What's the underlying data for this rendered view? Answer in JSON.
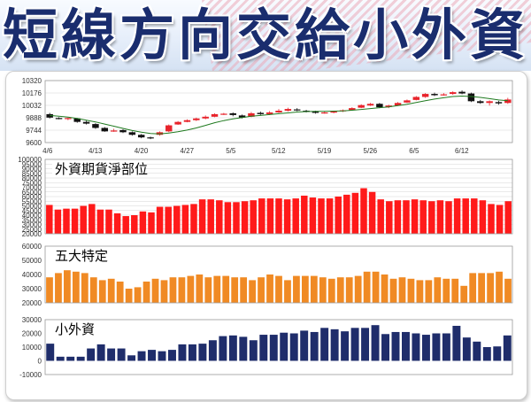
{
  "banner": {
    "title": "短線方向交給小外資"
  },
  "colors": {
    "title_text": "#1a2d6e",
    "candle_up": "#e8232b",
    "candle_down": "#111111",
    "ma_line": "#1f7a1f",
    "foreign_bar": "#ff1a1a",
    "top5_bar": "#f08a24",
    "retail_bar": "#1f2d6b"
  },
  "chart_data": [
    {
      "type": "candlestick",
      "title": "",
      "y_ticks": [
        "9600",
        "9744",
        "9888",
        "10032",
        "10176",
        "10320"
      ],
      "ylim": [
        9600,
        10320
      ],
      "x_tick_labels": [
        {
          "label": "4/6",
          "index": 0
        },
        {
          "label": "4/13",
          "index": 5
        },
        {
          "label": "4/20",
          "index": 10
        },
        {
          "label": "4/27",
          "index": 15
        },
        {
          "label": "5/5",
          "index": 20
        },
        {
          "label": "5/12",
          "index": 25
        },
        {
          "label": "5/19",
          "index": 30
        },
        {
          "label": "5/26",
          "index": 35
        },
        {
          "label": "6/5",
          "index": 40
        },
        {
          "label": "6/12",
          "index": 45
        }
      ],
      "candles": [
        [
          9930,
          9890,
          9945,
          9880
        ],
        [
          9885,
          9880,
          9895,
          9870
        ],
        [
          9880,
          9885,
          9890,
          9860
        ],
        [
          9880,
          9840,
          9885,
          9830
        ],
        [
          9840,
          9820,
          9855,
          9810
        ],
        [
          9815,
          9770,
          9825,
          9760
        ],
        [
          9770,
          9730,
          9780,
          9725
        ],
        [
          9735,
          9740,
          9760,
          9725
        ],
        [
          9745,
          9720,
          9755,
          9710
        ],
        [
          9720,
          9690,
          9730,
          9680
        ],
        [
          9690,
          9660,
          9700,
          9650
        ],
        [
          9660,
          9650,
          9670,
          9640
        ],
        [
          9690,
          9720,
          9730,
          9680
        ],
        [
          9730,
          9800,
          9810,
          9720
        ],
        [
          9810,
          9840,
          9850,
          9805
        ],
        [
          9840,
          9860,
          9870,
          9835
        ],
        [
          9860,
          9880,
          9890,
          9850
        ],
        [
          9880,
          9900,
          9915,
          9870
        ],
        [
          9900,
          9930,
          9940,
          9895
        ],
        [
          9930,
          9935,
          9945,
          9920
        ],
        [
          9940,
          9920,
          9950,
          9905
        ],
        [
          9915,
          9890,
          9925,
          9880
        ],
        [
          9900,
          9940,
          9955,
          9895
        ],
        [
          9945,
          9930,
          9960,
          9920
        ],
        [
          9930,
          9950,
          9965,
          9920
        ],
        [
          9950,
          9970,
          9990,
          9945
        ],
        [
          9970,
          9990,
          10005,
          9960
        ],
        [
          9985,
          9975,
          10000,
          9965
        ],
        [
          9970,
          9960,
          9980,
          9950
        ],
        [
          9960,
          9945,
          9970,
          9935
        ],
        [
          9945,
          9950,
          9960,
          9935
        ],
        [
          9950,
          9960,
          9970,
          9940
        ],
        [
          9965,
          9975,
          9985,
          9955
        ],
        [
          9975,
          10000,
          10010,
          9970
        ],
        [
          10005,
          10035,
          10045,
          10000
        ],
        [
          10030,
          10050,
          10060,
          10025
        ],
        [
          10050,
          10010,
          10060,
          10000
        ],
        [
          10015,
          10030,
          10040,
          10000
        ],
        [
          10030,
          10060,
          10070,
          10025
        ],
        [
          10065,
          10090,
          10100,
          10060
        ],
        [
          10095,
          10130,
          10140,
          10090
        ],
        [
          10130,
          10165,
          10175,
          10120
        ],
        [
          10165,
          10150,
          10180,
          10140
        ],
        [
          10150,
          10160,
          10175,
          10145
        ],
        [
          10165,
          10185,
          10195,
          10155
        ],
        [
          10190,
          10170,
          10205,
          10160
        ],
        [
          10170,
          10080,
          10180,
          10070
        ],
        [
          10080,
          10060,
          10095,
          10050
        ],
        [
          10060,
          10080,
          10090,
          10030
        ],
        [
          10070,
          10055,
          10085,
          10040
        ],
        [
          10060,
          10100,
          10120,
          10050
        ]
      ],
      "moving_average": [
        9915,
        9905,
        9895,
        9880,
        9860,
        9840,
        9815,
        9790,
        9765,
        9740,
        9720,
        9705,
        9700,
        9710,
        9725,
        9745,
        9770,
        9800,
        9830,
        9855,
        9875,
        9890,
        9905,
        9915,
        9925,
        9935,
        9945,
        9955,
        9960,
        9962,
        9963,
        9965,
        9968,
        9975,
        9985,
        9995,
        10005,
        10015,
        10030,
        10045,
        10065,
        10085,
        10105,
        10120,
        10135,
        10140,
        10135,
        10125,
        10110,
        10095,
        10085
      ]
    },
    {
      "type": "bar",
      "title": "外資期貨淨部位",
      "y_ticks": [
        "20000",
        "25000",
        "30000",
        "35000",
        "40000",
        "45000",
        "50000",
        "55000",
        "60000",
        "65000",
        "70000",
        "75000",
        "80000",
        "85000",
        "90000",
        "95000",
        "100000"
      ],
      "ylim": [
        20000,
        100000
      ],
      "values": [
        51000,
        46000,
        47000,
        47000,
        50000,
        52000,
        46000,
        46000,
        42000,
        39000,
        40000,
        44000,
        43000,
        49000,
        49000,
        50000,
        51000,
        52000,
        57000,
        57000,
        56000,
        54000,
        54000,
        55000,
        56000,
        58000,
        58000,
        58000,
        57000,
        58000,
        61000,
        59000,
        58000,
        58000,
        60000,
        62000,
        64000,
        69000,
        65000,
        57000,
        55000,
        56000,
        56000,
        57000,
        56000,
        55000,
        56000,
        55000,
        58000,
        58000,
        58000,
        56000,
        52000,
        51000,
        55000
      ]
    },
    {
      "type": "bar",
      "title": "五大特定",
      "y_ticks": [
        "20000",
        "30000",
        "40000",
        "50000",
        "60000"
      ],
      "ylim": [
        20000,
        60000
      ],
      "values": [
        38000,
        41000,
        43000,
        42000,
        41000,
        38000,
        36000,
        37000,
        35000,
        30000,
        31000,
        35000,
        37000,
        36000,
        38000,
        38000,
        39000,
        40000,
        38000,
        39000,
        39000,
        38000,
        38000,
        36000,
        38000,
        40000,
        39000,
        36000,
        39000,
        39000,
        39000,
        38000,
        37000,
        38000,
        38000,
        39000,
        42000,
        42000,
        40000,
        37000,
        38000,
        37000,
        36000,
        36000,
        38000,
        37000,
        37000,
        32000,
        41000,
        41000,
        41000,
        42000,
        37000
      ]
    },
    {
      "type": "bar",
      "title": "小外資",
      "y_ticks": [
        "-10000",
        "0",
        "10000",
        "20000",
        "30000"
      ],
      "ylim": [
        -10000,
        30000
      ],
      "values": [
        12500,
        3000,
        3000,
        3000,
        9000,
        12000,
        9000,
        9000,
        4000,
        7000,
        8000,
        7000,
        8000,
        12000,
        12000,
        12500,
        15000,
        18000,
        18500,
        17500,
        15000,
        19000,
        19000,
        20500,
        20000,
        22000,
        21000,
        24000,
        23000,
        21500,
        24000,
        24000,
        26000,
        19500,
        21000,
        21000,
        20000,
        19000,
        20000,
        20000,
        25500,
        17000,
        14000,
        10000,
        10500,
        18500
      ]
    }
  ]
}
